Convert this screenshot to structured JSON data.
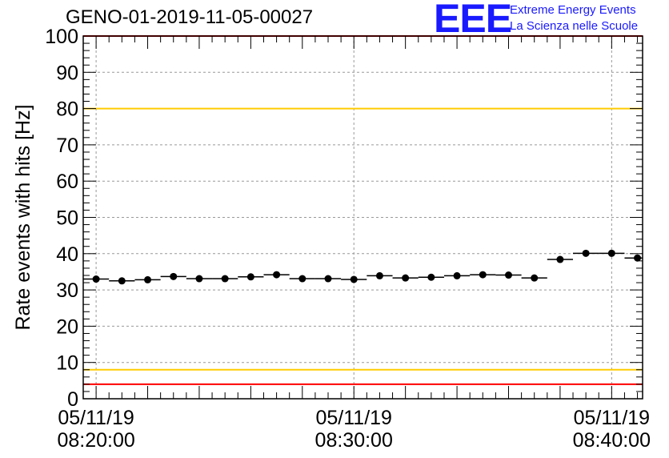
{
  "header": {
    "title": "GENO-01-2019-11-05-00027",
    "logo_text": "EEE",
    "tagline_1": "Extreme Energy Events",
    "tagline_2": "La Scienza nelle Scuole"
  },
  "colors": {
    "logo": "#1a1aff",
    "red_limit": "#ff0000",
    "yellow_limit": "#ffcc00",
    "marker": "#000000",
    "grid": "#999999"
  },
  "chart_data": {
    "type": "scatter",
    "title": "GENO-01-2019-11-05-00027",
    "xlabel": "",
    "ylabel": "Rate events with hits [Hz]",
    "ylim": [
      0,
      100
    ],
    "xlim": [
      -0.5,
      21.2
    ],
    "x_unit": "minutes from 08:20:00",
    "y_ticks": [
      0,
      10,
      20,
      30,
      40,
      50,
      60,
      70,
      80,
      90,
      100
    ],
    "x_tick_labels": [
      {
        "x": 0,
        "date": "05/11/19",
        "time": "08:20:00"
      },
      {
        "x": 10,
        "date": "05/11/19",
        "time": "08:30:00"
      },
      {
        "x": 20,
        "date": "05/11/19",
        "time": "08:40:00"
      }
    ],
    "grid": true,
    "series": [
      {
        "x": [
          0,
          1,
          2,
          3,
          4,
          5,
          6,
          7,
          8,
          9,
          10,
          11,
          12,
          13,
          14,
          15,
          16,
          17,
          18,
          19,
          20,
          21
        ],
        "values": [
          33.0,
          32.5,
          32.8,
          33.7,
          33.1,
          33.1,
          33.6,
          34.2,
          33.1,
          33.1,
          32.9,
          33.9,
          33.3,
          33.5,
          33.9,
          34.2,
          34.1,
          33.3,
          38.4,
          40.1,
          40.1,
          38.8
        ],
        "x_error": 0.5
      }
    ],
    "reference_lines": [
      {
        "y": 100,
        "color": "red"
      },
      {
        "y": 80,
        "color": "yellow"
      },
      {
        "y": 8,
        "color": "yellow"
      },
      {
        "y": 4,
        "color": "red"
      }
    ]
  }
}
